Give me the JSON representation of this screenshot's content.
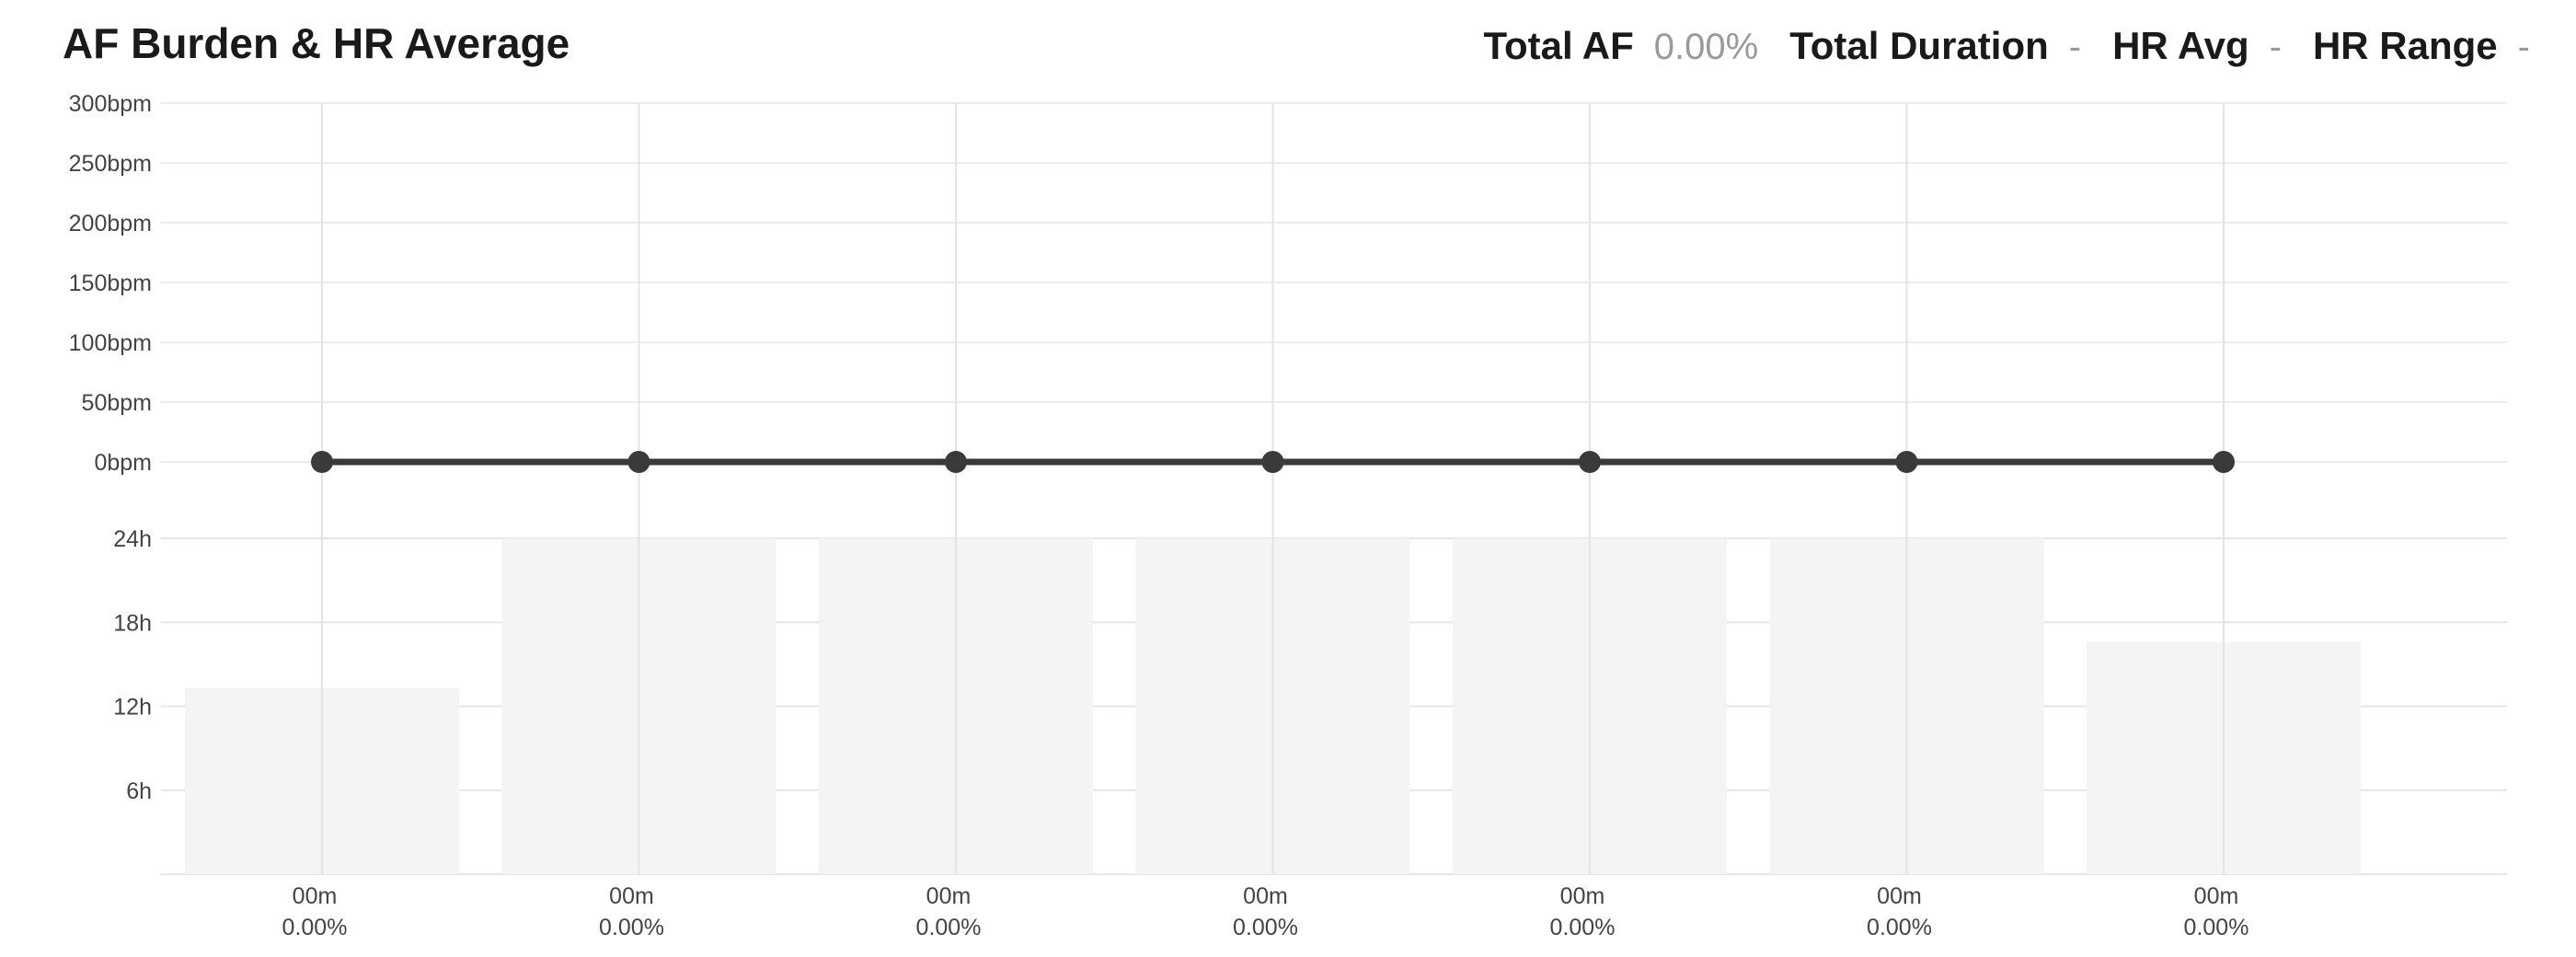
{
  "header": {
    "title": "AF Burden & HR Average",
    "stats": [
      {
        "label": "Total AF",
        "value": "0.00%"
      },
      {
        "label": "Total Duration",
        "value": "-"
      },
      {
        "label": "HR Avg",
        "value": "-"
      },
      {
        "label": "HR Range",
        "value": "-"
      }
    ]
  },
  "chart_data": [
    {
      "type": "line",
      "title": "AF Burden & HR Average",
      "ylabel": "",
      "ylim": [
        0,
        300
      ],
      "y_ticks": [
        "300bpm",
        "250bpm",
        "200bpm",
        "150bpm",
        "100bpm",
        "50bpm",
        "0bpm"
      ],
      "y_tick_values": [
        300,
        250,
        200,
        150,
        100,
        50,
        0
      ],
      "grid": true,
      "series": [
        {
          "values": [
            0,
            0,
            0,
            0,
            0,
            0,
            0
          ]
        }
      ],
      "colors": {
        "line": "#3a3a3a",
        "grid": "#ececec"
      }
    },
    {
      "type": "bar",
      "ylim": [
        0,
        24
      ],
      "y_ticks": [
        "24h",
        "18h",
        "12h",
        "6h"
      ],
      "y_tick_values": [
        24,
        18,
        12,
        6
      ],
      "grid": true,
      "series": [
        {
          "values": [
            13.3,
            24,
            24,
            24,
            24,
            24,
            16.6
          ]
        }
      ],
      "duration_labels": [
        "00m",
        "00m",
        "00m",
        "00m",
        "00m",
        "00m",
        "00m"
      ],
      "percent_labels": [
        "0.00%",
        "0.00%",
        "0.00%",
        "0.00%",
        "0.00%",
        "0.00%",
        "0.00%"
      ],
      "colors": {
        "bar": "#f4f4f4",
        "grid": "#e6e6e6"
      }
    }
  ]
}
